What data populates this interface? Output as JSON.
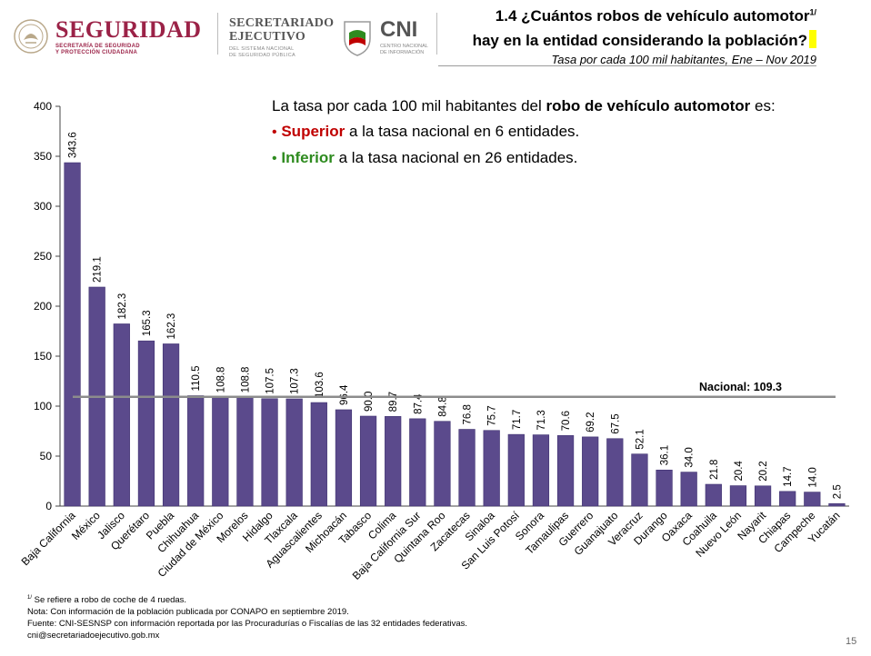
{
  "header": {
    "seguridad": {
      "title": "SEGURIDAD",
      "subtitle": "SECRETARÍA DE SEGURIDAD\nY PROTECCIÓN CIUDADANA"
    },
    "secretariado": {
      "title": "SECRETARIADO\nEJECUTIVO",
      "subtitle": "DEL SISTEMA NACIONAL\nDE SEGURIDAD PÚBLICA"
    },
    "cni": {
      "title": "CNI",
      "subtitle": "CENTRO NACIONAL\nDE INFORMACIÓN"
    },
    "title_line1": "1.4 ¿Cuántos robos de vehículo automotor",
    "title_sup": "1/",
    "title_line2": "hay en la entidad considerando la población?",
    "subtitle": "Tasa por cada 100 mil habitantes, Ene – Nov 2019"
  },
  "callout": {
    "intro_pre": "La tasa por cada 100 mil habitantes del ",
    "intro_bold": "robo de vehículo automotor",
    "intro_post": " es:",
    "superior_word": "Superior",
    "superior_text": " a la tasa nacional en 6 entidades.",
    "inferior_word": "Inferior",
    "inferior_text": " a la tasa nacional en 26 entidades."
  },
  "chart_data": {
    "type": "bar",
    "categories": [
      "Baja California",
      "México",
      "Jalisco",
      "Querétaro",
      "Puebla",
      "Chihuahua",
      "Ciudad de México",
      "Morelos",
      "Hidalgo",
      "Tlaxcala",
      "Aguascalientes",
      "Michoacán",
      "Tabasco",
      "Colima",
      "Baja California Sur",
      "Quintana Roo",
      "Zacatecas",
      "Sinaloa",
      "San Luis Potosí",
      "Sonora",
      "Tamaulipas",
      "Guerrero",
      "Guanajuato",
      "Veracruz",
      "Durango",
      "Oaxaca",
      "Coahuila",
      "Nuevo León",
      "Nayarit",
      "Chiapas",
      "Campeche",
      "Yucatán"
    ],
    "values": [
      343.6,
      219.1,
      182.3,
      165.3,
      162.3,
      110.5,
      108.8,
      108.8,
      107.5,
      107.3,
      103.6,
      96.4,
      90.0,
      89.7,
      87.4,
      84.8,
      76.8,
      75.7,
      71.7,
      71.3,
      70.6,
      69.2,
      67.5,
      52.1,
      36.1,
      34.0,
      21.8,
      20.4,
      20.2,
      14.7,
      14.0,
      2.5
    ],
    "value_labels": [
      "343.6",
      "219.1",
      "182.3",
      "165.3",
      "162.3",
      "110.5",
      "108.8",
      "108.8",
      "107.5",
      "107.3",
      "103.6",
      "96.4",
      "90.0",
      "89.7",
      "87.4",
      "84.8",
      "76.8",
      "75.7",
      "71.7",
      "71.3",
      "70.6",
      "69.2",
      "67.5",
      "52.1",
      "36.1",
      "34.0",
      "21.8",
      "20.4",
      "20.2",
      "14.7",
      "14.0",
      "2.5"
    ],
    "ylim": [
      0,
      400
    ],
    "yticks": [
      "0",
      "50",
      "100",
      "150",
      "200",
      "250",
      "300",
      "350",
      "400"
    ],
    "grid": false,
    "reference_line": {
      "label": "Nacional: 109.3",
      "value": 109.3
    },
    "colors": {
      "bar": "#5b4a8c",
      "bar_edge": "#3f3170",
      "reference": "#8c8c8c"
    }
  },
  "footnotes": {
    "note1_sup": "1/",
    "note1": " Se refiere a robo de coche de 4 ruedas.",
    "note2": "Nota: Con información de la población publicada por CONAPO en septiembre 2019.",
    "note3": "Fuente: CNI-SESNSP con información reportada por las Procuradurías o Fiscalías de las 32 entidades federativas.",
    "note4": "cni@secretariadoejecutivo.gob.mx"
  },
  "page_number": "15"
}
